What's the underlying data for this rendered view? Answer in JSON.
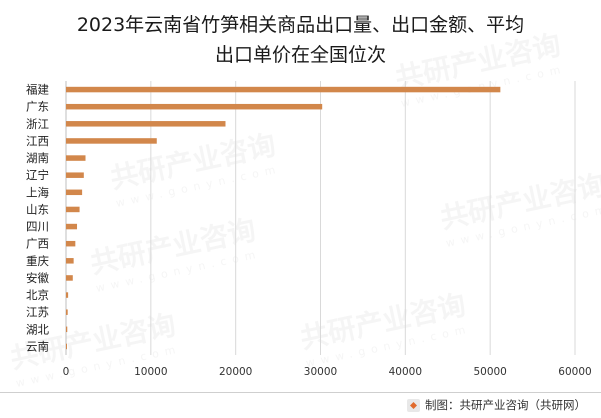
{
  "chart_data": {
    "type": "bar",
    "orientation": "horizontal",
    "title_line1": "2023年云南省竹笋相关商品出口量、出口金额、平均",
    "title_line2": "出口单价在全国位次",
    "categories": [
      "福建",
      "广东",
      "浙江",
      "江西",
      "湖南",
      "辽宁",
      "上海",
      "山东",
      "四川",
      "广西",
      "重庆",
      "安徽",
      "北京",
      "江苏",
      "湖北",
      "云南"
    ],
    "values": [
      51200,
      30200,
      18800,
      10700,
      2300,
      2100,
      1900,
      1600,
      1300,
      1100,
      900,
      800,
      250,
      200,
      150,
      100
    ],
    "xlim": [
      0,
      60000
    ],
    "xticks": [
      0,
      10000,
      20000,
      30000,
      40000,
      50000,
      60000
    ],
    "xtick_labels": [
      "0",
      "10000",
      "20000",
      "30000",
      "40000",
      "50000",
      "60000"
    ],
    "grid": true,
    "bar_color": "#d2874b"
  },
  "footer": {
    "source_text": "制图：共研产业咨询（共研网）"
  },
  "watermark": {
    "brand": "共研产业咨询",
    "domain": "www.gonyn.com"
  }
}
